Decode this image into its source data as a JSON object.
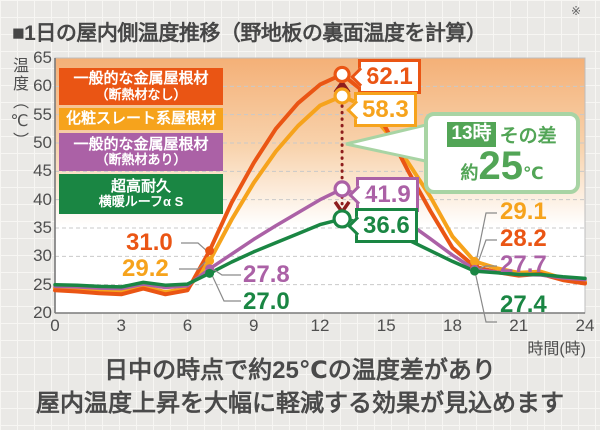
{
  "title": "■1日の屋内側温度推移（野地板の裏面温度を計算）",
  "note_mark": "※",
  "axes": {
    "y_unit": "温度（℃）",
    "x_unit": "時間(時)",
    "y_ticks": [
      "65",
      "60",
      "55",
      "50",
      "45",
      "40",
      "35",
      "30",
      "25",
      "20"
    ],
    "x_ticks": [
      "0",
      "3",
      "6",
      "9",
      "12",
      "15",
      "18",
      "21",
      "24"
    ]
  },
  "legend": {
    "items": [
      {
        "line1": "一般的な金属屋根材",
        "line2": "（断熱材なし）",
        "color": "#ea5514"
      },
      {
        "line1": "化粧スレート系屋根材",
        "line2": "",
        "color": "#f6a31c"
      },
      {
        "line1": "一般的な金属屋根材",
        "line2": "（断熱材あり）",
        "color": "#ab61a6"
      },
      {
        "line1": "超高耐久",
        "line2": "横暖ルーフα S",
        "color": "#1a8643"
      }
    ]
  },
  "labels": {
    "peak": {
      "no_insulation": "62.1",
      "slate": "58.3",
      "insulated": "41.9",
      "yokodan": "36.6"
    },
    "morning": {
      "no_insulation": "31.0",
      "slate": "29.2",
      "insulated": "27.8",
      "yokodan": "27.0"
    },
    "evening": {
      "slate": "29.1",
      "no_insulation": "28.2",
      "insulated": "27.7",
      "yokodan": "27.4"
    }
  },
  "callout": {
    "time": "13時",
    "diff_label": "その差",
    "approx": "約",
    "value": "25",
    "unit": "℃",
    "color": "#52a556"
  },
  "caption": {
    "line1": "日中の時点で約25℃の温度差があり",
    "line2": "屋内温度上昇を大幅に軽減する効果が見込めます"
  },
  "chart_data": {
    "type": "line",
    "title": "1日の屋内側温度推移（野地板の裏面温度を計算）",
    "xlabel": "時間(時)",
    "ylabel": "温度（℃）",
    "xlim": [
      0,
      24
    ],
    "ylim": [
      20,
      65
    ],
    "grid": "horizontal-dashed-every-5",
    "legend_position": "top-left",
    "x": [
      0,
      1,
      2,
      3,
      4,
      5,
      6,
      7,
      8,
      9,
      10,
      11,
      12,
      13,
      14,
      15,
      16,
      17,
      18,
      19,
      20,
      21,
      22,
      23,
      24
    ],
    "series": [
      {
        "name": "一般的な金属屋根材（断熱材なし）",
        "color": "#ea5514",
        "values": [
          24.0,
          23.8,
          23.5,
          23.3,
          24.3,
          23.3,
          24.0,
          31.0,
          39.5,
          46.5,
          52.5,
          57.0,
          60.3,
          62.1,
          59.0,
          52.5,
          45.0,
          38.0,
          31.5,
          28.2,
          27.2,
          26.6,
          26.9,
          25.8,
          25.2
        ]
      },
      {
        "name": "化粧スレート系屋根材",
        "color": "#f6a31c",
        "values": [
          24.4,
          24.2,
          23.9,
          23.7,
          24.6,
          23.7,
          24.3,
          29.2,
          36.5,
          43.0,
          48.5,
          53.0,
          56.6,
          58.3,
          56.5,
          52.0,
          46.5,
          40.5,
          33.5,
          29.1,
          27.9,
          27.1,
          27.3,
          26.1,
          25.5
        ]
      },
      {
        "name": "一般的な金属屋根材（断熱材あり）",
        "color": "#ab61a6",
        "values": [
          24.7,
          24.6,
          24.4,
          24.3,
          25.1,
          24.5,
          24.8,
          27.8,
          30.4,
          33.0,
          35.4,
          37.7,
          40.0,
          41.9,
          40.6,
          38.4,
          35.9,
          33.1,
          30.2,
          27.7,
          27.2,
          26.8,
          26.7,
          26.2,
          25.9
        ]
      },
      {
        "name": "超高耐久 横暖ルーフα S",
        "color": "#1a8643",
        "values": [
          25.0,
          24.9,
          24.7,
          24.6,
          25.4,
          24.9,
          25.1,
          27.0,
          29.0,
          30.8,
          32.4,
          34.0,
          35.6,
          36.6,
          35.9,
          34.6,
          32.9,
          31.0,
          29.1,
          27.4,
          27.1,
          26.8,
          26.8,
          26.4,
          26.1
        ]
      }
    ],
    "labeled_hours": {
      "morning": 7,
      "peak": 13,
      "evening": 19
    },
    "annotation": {
      "text": "13時 その差 約25℃",
      "diff_between": [
        62.1,
        36.6
      ],
      "approx_diff_c": 25,
      "diff_line_color": "#8e1d1d"
    }
  }
}
